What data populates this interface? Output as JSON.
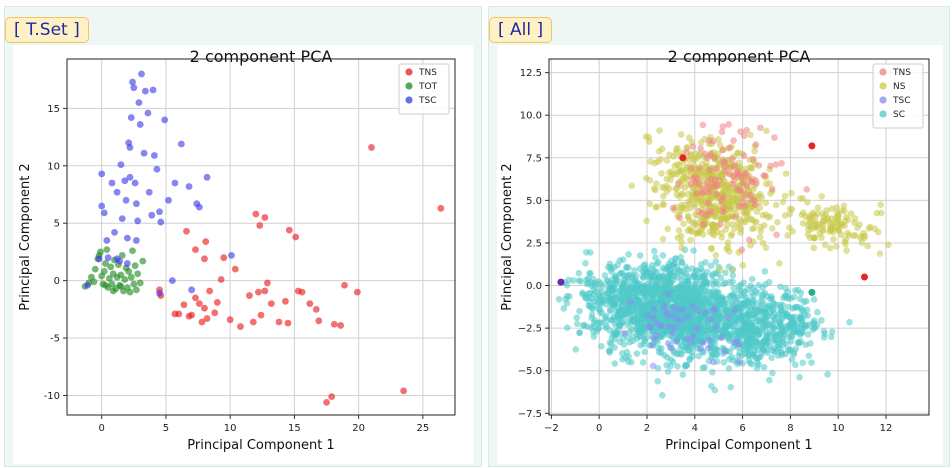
{
  "panels": {
    "left": {
      "tag": "[ T.Set ]"
    },
    "right": {
      "tag": "[ All ]"
    }
  },
  "chart_data": [
    {
      "type": "scatter",
      "title": "2 component PCA",
      "xlabel": "Principal Component 1",
      "ylabel": "Principal Component 2",
      "xlim": [
        -2.7,
        27.5
      ],
      "ylim": [
        -11.7,
        19.3
      ],
      "xticks": [
        0,
        5,
        10,
        15,
        20,
        25
      ],
      "yticks": [
        -10,
        -5,
        0,
        5,
        10,
        15
      ],
      "grid": true,
      "legend_position": "top-right",
      "series": [
        {
          "name": "TNS",
          "color": "#e8191a",
          "points": [
            [
              4.5,
              -0.8
            ],
            [
              4.6,
              -1.3
            ],
            [
              5.7,
              -2.9
            ],
            [
              6.0,
              -2.9
            ],
            [
              6.4,
              -2.1
            ],
            [
              6.8,
              -3.1
            ],
            [
              7.0,
              -3.0
            ],
            [
              7.3,
              -1.5
            ],
            [
              7.6,
              -2.0
            ],
            [
              7.8,
              -3.6
            ],
            [
              8.0,
              -2.4
            ],
            [
              8.2,
              -3.3
            ],
            [
              8.4,
              -0.9
            ],
            [
              8.8,
              -2.8
            ],
            [
              9.0,
              -1.9
            ],
            [
              9.3,
              0.1
            ],
            [
              6.6,
              4.3
            ],
            [
              7.3,
              2.7
            ],
            [
              8.1,
              3.4
            ],
            [
              8.0,
              1.9
            ],
            [
              9.5,
              2.0
            ],
            [
              10.4,
              1.0
            ],
            [
              10.0,
              -3.4
            ],
            [
              10.8,
              -4.0
            ],
            [
              11.5,
              -1.3
            ],
            [
              11.8,
              -3.6
            ],
            [
              12.2,
              -1.0
            ],
            [
              12.4,
              -3.0
            ],
            [
              12.7,
              -0.9
            ],
            [
              12.9,
              -0.2
            ],
            [
              13.2,
              -2.0
            ],
            [
              13.8,
              -3.6
            ],
            [
              14.3,
              -1.8
            ],
            [
              14.5,
              -3.7
            ],
            [
              15.3,
              -0.9
            ],
            [
              16.2,
              -2.0
            ],
            [
              15.6,
              -1.0
            ],
            [
              16.7,
              -2.5
            ],
            [
              16.9,
              -3.5
            ],
            [
              18.1,
              -3.8
            ],
            [
              18.6,
              -3.9
            ],
            [
              18.9,
              -0.4
            ],
            [
              19.9,
              -1.0
            ],
            [
              12.0,
              5.8
            ],
            [
              12.7,
              5.5
            ],
            [
              12.3,
              4.8
            ],
            [
              14.6,
              4.4
            ],
            [
              15.1,
              3.8
            ],
            [
              17.5,
              -10.6
            ],
            [
              17.9,
              -10.1
            ],
            [
              21.0,
              11.6
            ],
            [
              23.5,
              -9.6
            ],
            [
              26.4,
              6.3
            ]
          ]
        },
        {
          "name": "TOT",
          "color": "#1f8a1f",
          "points": [
            [
              -1.3,
              -0.5
            ],
            [
              -1.0,
              -0.2
            ],
            [
              -0.8,
              0.3
            ],
            [
              -0.5,
              1.0
            ],
            [
              -0.3,
              1.9
            ],
            [
              -0.1,
              2.5
            ],
            [
              0.1,
              -0.3
            ],
            [
              0.2,
              0.8
            ],
            [
              0.3,
              1.5
            ],
            [
              0.4,
              2.7
            ],
            [
              0.5,
              -0.6
            ],
            [
              0.6,
              0.2
            ],
            [
              0.7,
              1.2
            ],
            [
              0.8,
              -0.3
            ],
            [
              0.9,
              0.6
            ],
            [
              1.0,
              1.8
            ],
            [
              1.1,
              -0.7
            ],
            [
              1.2,
              0.3
            ],
            [
              1.3,
              1.4
            ],
            [
              1.4,
              -0.4
            ],
            [
              1.5,
              0.5
            ],
            [
              1.6,
              2.2
            ],
            [
              1.7,
              -0.9
            ],
            [
              1.8,
              0.1
            ],
            [
              1.9,
              1.1
            ],
            [
              2.0,
              -0.6
            ],
            [
              2.1,
              0.8
            ],
            [
              2.2,
              -1.0
            ],
            [
              2.3,
              0.3
            ],
            [
              2.4,
              2.6
            ],
            [
              2.5,
              -0.3
            ],
            [
              2.6,
              1.3
            ],
            [
              2.7,
              -0.8
            ],
            [
              2.8,
              0.6
            ],
            [
              3.0,
              -0.2
            ],
            [
              3.2,
              1.7
            ],
            [
              -0.6,
              -0.1
            ],
            [
              0.0,
              0.4
            ],
            [
              0.3,
              -0.4
            ],
            [
              0.9,
              -0.9
            ],
            [
              1.5,
              -0.5
            ],
            [
              -0.2,
              2.2
            ]
          ]
        },
        {
          "name": "TSC",
          "color": "#3b3bea",
          "points": [
            [
              -1.1,
              -0.4
            ],
            [
              -0.2,
              1.9
            ],
            [
              0.0,
              6.5
            ],
            [
              0.2,
              5.9
            ],
            [
              0.4,
              3.5
            ],
            [
              0.0,
              9.3
            ],
            [
              0.5,
              2.0
            ],
            [
              0.8,
              8.5
            ],
            [
              1.0,
              4.2
            ],
            [
              1.2,
              7.7
            ],
            [
              1.2,
              1.9
            ],
            [
              1.4,
              1.7
            ],
            [
              1.5,
              10.1
            ],
            [
              1.6,
              5.4
            ],
            [
              1.8,
              8.7
            ],
            [
              1.9,
              7.0
            ],
            [
              2.0,
              3.7
            ],
            [
              2.1,
              12.0
            ],
            [
              2.2,
              9.0
            ],
            [
              2.3,
              14.2
            ],
            [
              2.2,
              11.6
            ],
            [
              2.6,
              8.5
            ],
            [
              2.7,
              6.7
            ],
            [
              2.8,
              5.2
            ],
            [
              2.4,
              17.3
            ],
            [
              2.5,
              16.8
            ],
            [
              2.9,
              15.5
            ],
            [
              3.1,
              18.0
            ],
            [
              3.0,
              13.6
            ],
            [
              3.3,
              11.1
            ],
            [
              3.4,
              16.5
            ],
            [
              3.6,
              14.6
            ],
            [
              3.7,
              7.7
            ],
            [
              3.9,
              5.7
            ],
            [
              4.0,
              16.6
            ],
            [
              4.1,
              10.9
            ],
            [
              4.3,
              9.7
            ],
            [
              4.5,
              6.0
            ],
            [
              4.6,
              5.1
            ],
            [
              4.9,
              14.0
            ],
            [
              5.2,
              7.0
            ],
            [
              5.7,
              8.5
            ],
            [
              6.2,
              11.9
            ],
            [
              6.8,
              8.2
            ],
            [
              7.4,
              6.7
            ],
            [
              7.6,
              6.4
            ],
            [
              8.2,
              9.0
            ],
            [
              7.0,
              -0.8
            ],
            [
              5.5,
              0.0
            ],
            [
              4.5,
              -1.1
            ],
            [
              2.0,
              1.5
            ],
            [
              10.1,
              2.2
            ],
            [
              2.7,
              3.5
            ]
          ]
        }
      ]
    },
    {
      "type": "scatter",
      "title": "2 component PCA",
      "xlabel": "Principal Component 1",
      "ylabel": "Principal Component 2",
      "xlim": [
        -2.1,
        13.8
      ],
      "ylim": [
        -7.6,
        13.3
      ],
      "xticks": [
        -2,
        0,
        2,
        4,
        6,
        8,
        10,
        12
      ],
      "xtick_labels": [
        "−2",
        "0",
        "2",
        "4",
        "6",
        "8",
        "10",
        "12"
      ],
      "yticks": [
        -7.5,
        -5.0,
        -2.5,
        0.0,
        2.5,
        5.0,
        7.5,
        10.0,
        12.5
      ],
      "ytick_labels": [
        "−7.5",
        "−5.0",
        "−2.5",
        "0.0",
        "2.5",
        "5.0",
        "7.5",
        "10.0",
        "12.5"
      ],
      "grid": true,
      "legend_position": "top-right",
      "series": [
        {
          "name": "TNS",
          "color": "#f08080",
          "clusters": "approximately 100 points concentrated in x 2–9, y -2–10"
        },
        {
          "name": "NS",
          "color": "#c8c84a",
          "clusters": "approximately 700 points concentrated in x 0–13, y 1–12.5"
        },
        {
          "name": "TSC",
          "color": "#8a8af0",
          "clusters": "approximately 60 points concentrated in x -2–8, y -5–2"
        },
        {
          "name": "SC",
          "color": "#4ec9c9",
          "clusters": "approximately 2000 points concentrated in x -1.5–12.5, y -6.7–4"
        }
      ],
      "highlight_points": [
        [
          -1.6,
          0.2,
          "#6a1ab0"
        ],
        [
          3.5,
          7.5,
          "#e8191a"
        ],
        [
          8.9,
          8.2,
          "#e8191a"
        ],
        [
          9.0,
          2.8,
          "#c8c84a"
        ],
        [
          11.1,
          0.5,
          "#e8191a"
        ],
        [
          8.9,
          -0.4,
          "#1aaa8a"
        ]
      ]
    }
  ]
}
